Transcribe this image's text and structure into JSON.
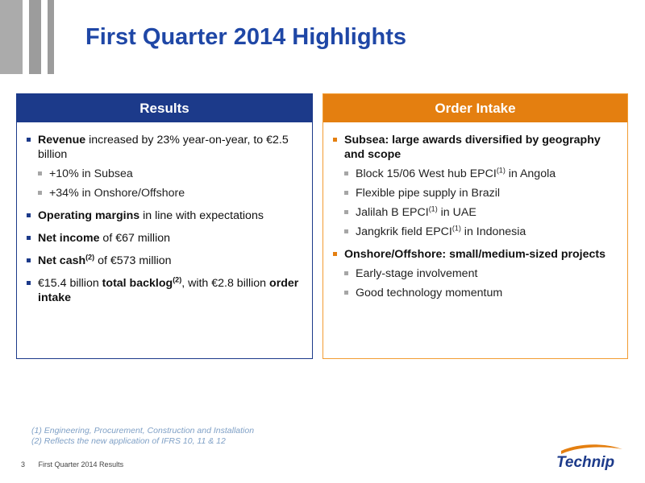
{
  "title": "First Quarter 2014 Highlights",
  "results": {
    "header": "Results",
    "items": [
      {
        "bold": "Revenue",
        "text": " increased by 23% year-on-year, to €2.5 billion",
        "subs": [
          "+10% in Subsea",
          "+34% in Onshore/Offshore"
        ]
      },
      {
        "bold": "Operating margins",
        "text": " in line with expectations"
      },
      {
        "bold": "Net income",
        "text": " of €67 million"
      },
      {
        "bold": "Net cash",
        "sup": "(2)",
        "text": " of €573 million"
      },
      {
        "pre": "€15.4 billion ",
        "bold": "total backlog",
        "sup": "(2)",
        "post": ", with €2.8 billion ",
        "bold2": "order intake"
      }
    ]
  },
  "order_intake": {
    "header": "Order Intake",
    "group1": {
      "heading": "Subsea: large awards diversified by geography and scope",
      "subs": [
        {
          "pre": "Block 15/06 West hub EPCI",
          "sup": "(1)",
          "post": " in Angola"
        },
        {
          "pre": "Flexible pipe supply in Brazil"
        },
        {
          "pre": "Jalilah B EPCI",
          "sup": "(1)",
          "post": " in UAE"
        },
        {
          "pre": "Jangkrik field EPCI",
          "sup": "(1)",
          "post": " in Indonesia"
        }
      ]
    },
    "group2": {
      "heading": "Onshore/Offshore: small/medium-sized projects",
      "subs": [
        "Early-stage involvement",
        "Good technology momentum"
      ]
    }
  },
  "footnotes": [
    "(1) Engineering, Procurement, Construction and Installation",
    "(2) Reflects the new application of IFRS 10, 11 & 12"
  ],
  "footer": {
    "page": "3",
    "text": "First Quarter 2014 Results"
  },
  "logo": {
    "text": "Technip"
  },
  "colors": {
    "title": "#1f47a6",
    "results": "#1c3a8a",
    "order": "#e47f10"
  }
}
